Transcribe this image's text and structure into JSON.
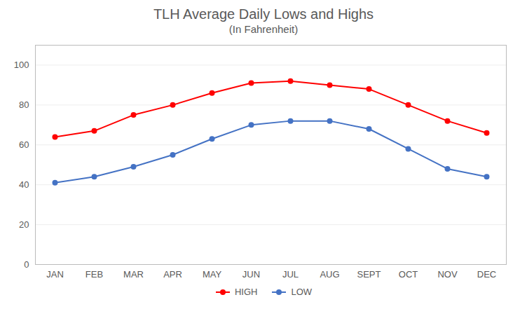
{
  "chart_data": {
    "type": "line",
    "title": "TLH Average Daily Lows and Highs",
    "subtitle": "(In Fahrenheit)",
    "categories": [
      "JAN",
      "FEB",
      "MAR",
      "APR",
      "MAY",
      "JUN",
      "JUL",
      "AUG",
      "SEPT",
      "OCT",
      "NOV",
      "DEC"
    ],
    "series": [
      {
        "name": "HIGH",
        "color": "#FF0000",
        "marker": "circle",
        "values": [
          64,
          67,
          75,
          80,
          86,
          91,
          92,
          90,
          88,
          80,
          72,
          66
        ]
      },
      {
        "name": "LOW",
        "color": "#4472C4",
        "marker": "circle",
        "values": [
          41,
          44,
          49,
          55,
          63,
          70,
          72,
          72,
          68,
          58,
          48,
          44
        ]
      }
    ],
    "ylim": [
      0,
      110
    ],
    "yticks": [
      0,
      20,
      40,
      60,
      80,
      100
    ],
    "grid": true,
    "legend": "bottom"
  }
}
